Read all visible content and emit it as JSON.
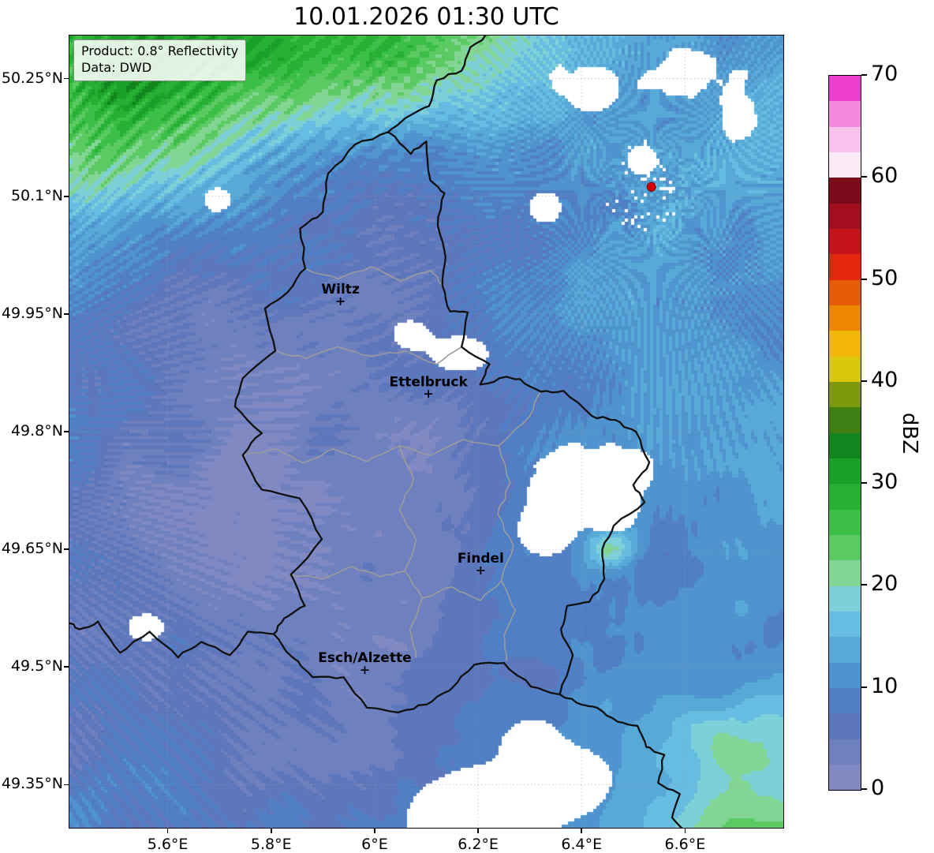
{
  "title": "10.01.2026 01:30 UTC",
  "info_box": {
    "product": "Product: 0.8° Reflectivity",
    "source": "Data: DWD"
  },
  "chart_data": {
    "type": "heatmap",
    "title": "10.01.2026 01:30 UTC",
    "product": "0.8° Reflectivity",
    "data_source": "DWD",
    "unit": "dBZ",
    "x_axis": {
      "range": [
        5.41,
        6.79
      ],
      "ticks": [
        {
          "value": 5.6,
          "label": "5.6°E"
        },
        {
          "value": 5.8,
          "label": "5.8°E"
        },
        {
          "value": 6.0,
          "label": "6°E"
        },
        {
          "value": 6.2,
          "label": "6.2°E"
        },
        {
          "value": 6.4,
          "label": "6.4°E"
        },
        {
          "value": 6.6,
          "label": "6.6°E"
        }
      ]
    },
    "y_axis": {
      "range": [
        49.295,
        50.305
      ],
      "ticks": [
        {
          "value": 50.25,
          "label": "50.25°N"
        },
        {
          "value": 50.1,
          "label": "50.1°N"
        },
        {
          "value": 49.95,
          "label": "49.95°N"
        },
        {
          "value": 49.8,
          "label": "49.8°N"
        },
        {
          "value": 49.65,
          "label": "49.65°N"
        },
        {
          "value": 49.5,
          "label": "49.5°N"
        },
        {
          "value": 49.35,
          "label": "49.35°N"
        }
      ]
    },
    "colorbar": {
      "label": "dBZ",
      "min": 0,
      "max": 70,
      "step": 2.5,
      "ticks": [
        {
          "value": 0,
          "label": "0"
        },
        {
          "value": 10,
          "label": "10"
        },
        {
          "value": 20,
          "label": "20"
        },
        {
          "value": 30,
          "label": "30"
        },
        {
          "value": 40,
          "label": "40"
        },
        {
          "value": 50,
          "label": "50"
        },
        {
          "value": 60,
          "label": "60"
        },
        {
          "value": 70,
          "label": "70"
        }
      ],
      "colors": [
        "#8089c2",
        "#6f80bf",
        "#5d77bd",
        "#507fc5",
        "#4f94ce",
        "#58a9d8",
        "#67bde1",
        "#7ed0d8",
        "#82d593",
        "#5bca63",
        "#3cbf47",
        "#27b034",
        "#1aa028",
        "#12851e",
        "#3f7f13",
        "#7f990f",
        "#d8c90d",
        "#f2b608",
        "#ee8600",
        "#e75c06",
        "#e3270f",
        "#c5121c",
        "#a20d1f",
        "#780a19",
        "#fce9f6",
        "#f9c2ec",
        "#f38ade",
        "#ee3ecf"
      ]
    },
    "cities": [
      {
        "name": "Wiltz",
        "lon": 5.934,
        "lat": 49.966
      },
      {
        "name": "Ettelbruck",
        "lon": 6.104,
        "lat": 49.848
      },
      {
        "name": "Findel",
        "lon": 6.205,
        "lat": 49.623
      },
      {
        "name": "Esch/Alzette",
        "lon": 5.981,
        "lat": 49.496
      }
    ],
    "radar_site": {
      "lon": 6.535,
      "lat": 50.112,
      "color": "#d40000"
    }
  },
  "map_layers": {
    "colors": {
      "national_border": "#111111",
      "internal_border": "#9b9b9b",
      "grid": "#9a9a9a",
      "city_marker": "#000000"
    },
    "national_borders": [
      [
        [
          6.026,
          50.182
        ],
        [
          6.07,
          50.154
        ],
        [
          6.1,
          50.17
        ],
        [
          6.108,
          50.12
        ],
        [
          6.135,
          50.104
        ],
        [
          6.122,
          50.063
        ],
        [
          6.137,
          50.022
        ],
        [
          6.131,
          49.986
        ],
        [
          6.146,
          49.953
        ],
        [
          6.18,
          49.952
        ],
        [
          6.168,
          49.908
        ],
        [
          6.222,
          49.886
        ],
        [
          6.204,
          49.86
        ],
        [
          6.255,
          49.87
        ],
        [
          6.281,
          49.867
        ],
        [
          6.321,
          49.851
        ],
        [
          6.365,
          49.852
        ],
        [
          6.42,
          49.82
        ],
        [
          6.465,
          49.815
        ],
        [
          6.505,
          49.8
        ],
        [
          6.531,
          49.761
        ],
        [
          6.5,
          49.732
        ],
        [
          6.522,
          49.71
        ],
        [
          6.462,
          49.68
        ],
        [
          6.44,
          49.65
        ],
        [
          6.444,
          49.612
        ],
        [
          6.415,
          49.583
        ],
        [
          6.372,
          49.578
        ],
        [
          6.36,
          49.548
        ],
        [
          6.383,
          49.515
        ],
        [
          6.358,
          49.465
        ],
        [
          6.302,
          49.475
        ],
        [
          6.25,
          49.505
        ],
        [
          6.193,
          49.503
        ],
        [
          6.145,
          49.47
        ],
        [
          6.1,
          49.452
        ],
        [
          6.045,
          49.442
        ],
        [
          5.985,
          49.448
        ],
        [
          5.94,
          49.487
        ],
        [
          5.88,
          49.487
        ],
        [
          5.84,
          49.513
        ],
        [
          5.805,
          49.542
        ],
        [
          5.825,
          49.562
        ],
        [
          5.865,
          49.578
        ],
        [
          5.838,
          49.618
        ],
        [
          5.898,
          49.663
        ],
        [
          5.855,
          49.715
        ],
        [
          5.782,
          49.726
        ],
        [
          5.745,
          49.77
        ],
        [
          5.782,
          49.798
        ],
        [
          5.73,
          49.832
        ],
        [
          5.745,
          49.868
        ],
        [
          5.808,
          49.903
        ],
        [
          5.788,
          49.957
        ],
        [
          5.832,
          49.978
        ],
        [
          5.866,
          50.008
        ],
        [
          5.856,
          50.059
        ],
        [
          5.9,
          50.08
        ],
        [
          5.91,
          50.129
        ],
        [
          5.962,
          50.166
        ],
        [
          6.026,
          50.182
        ]
      ],
      [
        [
          6.026,
          50.182
        ],
        [
          6.06,
          50.2
        ],
        [
          6.105,
          50.215
        ],
        [
          6.12,
          50.248
        ],
        [
          6.168,
          50.26
        ],
        [
          6.185,
          50.29
        ],
        [
          6.228,
          50.312
        ]
      ],
      [
        [
          5.805,
          49.542
        ],
        [
          5.755,
          49.545
        ],
        [
          5.72,
          49.515
        ],
        [
          5.665,
          49.532
        ],
        [
          5.62,
          49.512
        ],
        [
          5.565,
          49.545
        ],
        [
          5.508,
          49.518
        ],
        [
          5.465,
          49.558
        ],
        [
          5.43,
          49.548
        ],
        [
          5.402,
          49.56
        ]
      ],
      [
        [
          6.358,
          49.465
        ],
        [
          6.4,
          49.452
        ],
        [
          6.43,
          49.448
        ],
        [
          6.47,
          49.43
        ],
        [
          6.508,
          49.425
        ],
        [
          6.525,
          49.398
        ],
        [
          6.56,
          49.388
        ],
        [
          6.548,
          49.352
        ],
        [
          6.59,
          49.338
        ],
        [
          6.575,
          49.308
        ],
        [
          6.6,
          49.288
        ]
      ]
    ],
    "internal_borders": [
      [
        [
          5.808,
          49.903
        ],
        [
          5.868,
          49.893
        ],
        [
          5.93,
          49.908
        ],
        [
          5.995,
          49.896
        ],
        [
          6.058,
          49.903
        ],
        [
          6.12,
          49.886
        ],
        [
          6.168,
          49.908
        ]
      ],
      [
        [
          5.745,
          49.77
        ],
        [
          5.81,
          49.778
        ],
        [
          5.862,
          49.76
        ],
        [
          5.92,
          49.778
        ],
        [
          5.985,
          49.762
        ],
        [
          6.048,
          49.782
        ],
        [
          6.11,
          49.77
        ],
        [
          6.172,
          49.79
        ],
        [
          6.24,
          49.782
        ],
        [
          6.3,
          49.82
        ],
        [
          6.321,
          49.851
        ]
      ],
      [
        [
          6.048,
          49.782
        ],
        [
          6.075,
          49.74
        ],
        [
          6.048,
          49.7
        ],
        [
          6.08,
          49.662
        ],
        [
          6.058,
          49.622
        ],
        [
          6.092,
          49.588
        ],
        [
          6.068,
          49.548
        ],
        [
          6.08,
          49.512
        ]
      ],
      [
        [
          6.24,
          49.782
        ],
        [
          6.262,
          49.735
        ],
        [
          6.238,
          49.695
        ],
        [
          6.268,
          49.655
        ],
        [
          6.245,
          49.61
        ],
        [
          6.272,
          49.572
        ],
        [
          6.25,
          49.54
        ],
        [
          6.255,
          49.508
        ]
      ],
      [
        [
          6.092,
          49.588
        ],
        [
          6.15,
          49.602
        ],
        [
          6.205,
          49.585
        ],
        [
          6.245,
          49.61
        ]
      ],
      [
        [
          5.838,
          49.618
        ],
        [
          5.9,
          49.612
        ],
        [
          5.955,
          49.628
        ],
        [
          6.01,
          49.615
        ],
        [
          6.058,
          49.622
        ]
      ],
      [
        [
          5.866,
          50.008
        ],
        [
          5.93,
          49.995
        ],
        [
          5.992,
          50.01
        ],
        [
          6.05,
          49.992
        ],
        [
          6.108,
          50.005
        ],
        [
          6.131,
          49.986
        ]
      ]
    ]
  }
}
